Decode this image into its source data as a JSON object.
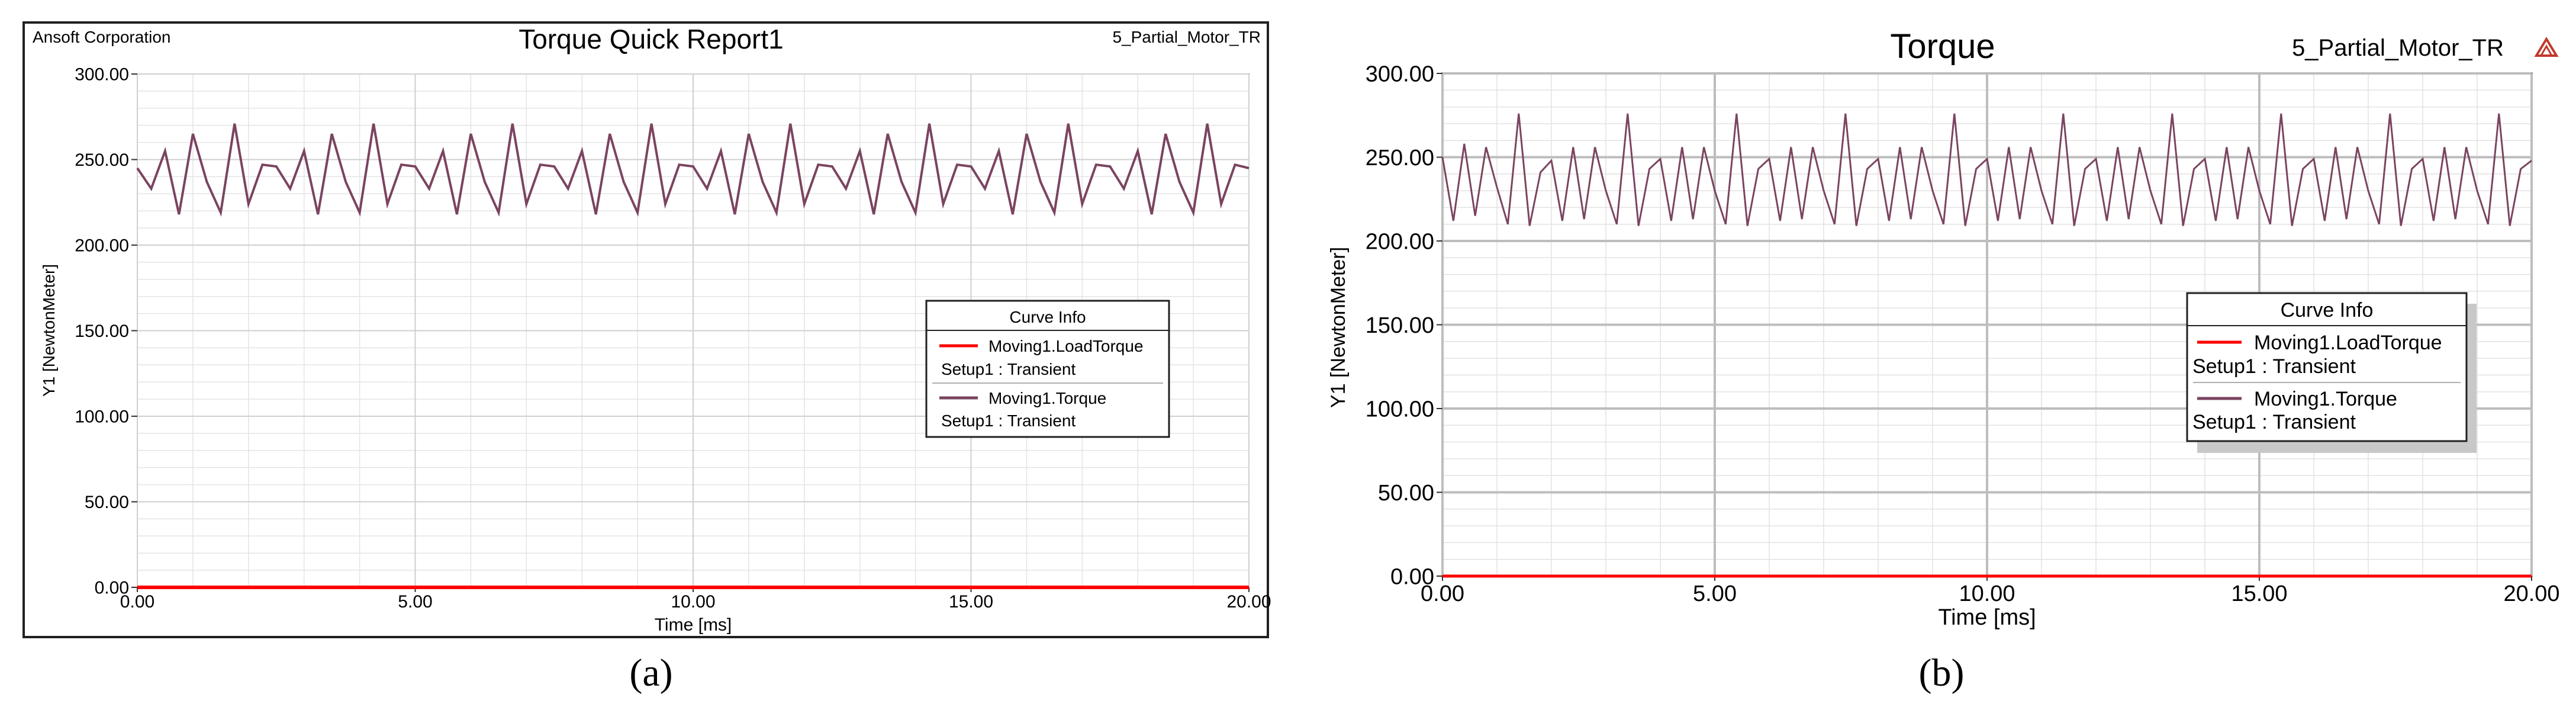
{
  "figure": {
    "panel_a_caption": "(a)",
    "panel_b_caption": "(b)"
  },
  "chart_data": [
    {
      "type": "line",
      "panel": "(a)",
      "title": "Torque Quick Report1",
      "company": "Ansoft Corporation",
      "project": "5_Partial_Motor_TR",
      "xlabel": "Time [ms]",
      "ylabel": "Y1 [NewtonMeter]",
      "xlim": [
        0,
        20
      ],
      "ylim": [
        0,
        300
      ],
      "x_ticks": [
        "0.00",
        "5.00",
        "10.00",
        "15.00",
        "20.00"
      ],
      "y_ticks": [
        "0.00",
        "50.00",
        "100.00",
        "150.00",
        "200.00",
        "250.00",
        "300.00"
      ],
      "grid": true,
      "legend_position": "center-right",
      "legend_title": "Curve Info",
      "series": [
        {
          "name": "Moving1.LoadTorque",
          "subtitle": "Setup1 : Transient",
          "color": "#ff0000",
          "x": [
            0,
            20
          ],
          "y": [
            0,
            0
          ]
        },
        {
          "name": "Moving1.Torque",
          "subtitle": "Setup1 : Transient",
          "color": "#7b4460",
          "x": [
            0.0,
            0.25,
            0.5,
            0.75,
            1.0,
            1.25,
            1.5,
            1.75,
            2.0,
            2.25,
            2.5,
            2.75,
            3.0,
            3.25,
            3.5,
            3.75,
            4.0,
            4.25,
            4.5,
            4.75,
            5.0,
            5.25,
            5.5,
            5.75,
            6.0,
            6.25,
            6.5,
            6.75,
            7.0,
            7.25,
            7.5,
            7.75,
            8.0,
            8.25,
            8.5,
            8.75,
            9.0,
            9.25,
            9.5,
            9.75,
            10.0,
            10.25,
            10.5,
            10.75,
            11.0,
            11.25,
            11.5,
            11.75,
            12.0,
            12.25,
            12.5,
            12.75,
            13.0,
            13.25,
            13.5,
            13.75,
            14.0,
            14.25,
            14.5,
            14.75,
            15.0,
            15.25,
            15.5,
            15.75,
            16.0,
            16.25,
            16.5,
            16.75,
            17.0,
            17.25,
            17.5,
            17.75,
            18.0,
            18.25,
            18.5,
            18.75,
            19.0,
            19.25,
            19.5,
            19.75,
            20.0
          ],
          "y": [
            245,
            233,
            255,
            218,
            265,
            237,
            219,
            271,
            224,
            247,
            246,
            233,
            255,
            218,
            265,
            237,
            219,
            271,
            224,
            247,
            246,
            233,
            255,
            218,
            265,
            237,
            219,
            271,
            224,
            247,
            246,
            233,
            255,
            218,
            265,
            237,
            219,
            271,
            224,
            247,
            246,
            233,
            255,
            218,
            265,
            237,
            219,
            271,
            224,
            247,
            246,
            233,
            255,
            218,
            265,
            237,
            219,
            271,
            224,
            247,
            246,
            233,
            255,
            218,
            265,
            237,
            219,
            271,
            224,
            247,
            246,
            233,
            255,
            218,
            265,
            237,
            219,
            271,
            224,
            247,
            245
          ]
        }
      ]
    },
    {
      "type": "line",
      "panel": "(b)",
      "title": "Torque",
      "project": "5_Partial_Motor_TR",
      "xlabel": "Time [ms]",
      "ylabel": "Y1 [NewtonMeter]",
      "xlim": [
        0,
        20
      ],
      "ylim": [
        0,
        300
      ],
      "x_ticks": [
        "0.00",
        "5.00",
        "10.00",
        "15.00",
        "20.00"
      ],
      "y_ticks": [
        "0.00",
        "50.00",
        "100.00",
        "150.00",
        "200.00",
        "250.00",
        "300.00"
      ],
      "grid": true,
      "legend_position": "center-right",
      "legend_title": "Curve Info",
      "series": [
        {
          "name": "Moving1.LoadTorque",
          "subtitle": "Setup1 : Transient",
          "color": "#ff0000",
          "x": [
            0,
            20
          ],
          "y": [
            0,
            0
          ]
        },
        {
          "name": "Moving1.Torque",
          "subtitle": "Setup1 : Transient",
          "color": "#7b4460",
          "x": [
            0.0,
            0.2,
            0.4,
            0.6,
            0.8,
            1.0,
            1.2,
            1.4,
            1.6,
            1.8,
            2.0,
            2.2,
            2.4,
            2.6,
            2.8,
            3.0,
            3.2,
            3.4,
            3.6,
            3.8,
            4.0,
            4.2,
            4.4,
            4.6,
            4.8,
            5.0,
            5.2,
            5.4,
            5.6,
            5.8,
            6.0,
            6.2,
            6.4,
            6.6,
            6.8,
            7.0,
            7.2,
            7.4,
            7.6,
            7.8,
            8.0,
            8.2,
            8.4,
            8.6,
            8.8,
            9.0,
            9.2,
            9.4,
            9.6,
            9.8,
            10.0,
            10.2,
            10.4,
            10.6,
            10.8,
            11.0,
            11.2,
            11.4,
            11.6,
            11.8,
            12.0,
            12.2,
            12.4,
            12.6,
            12.8,
            13.0,
            13.2,
            13.4,
            13.6,
            13.8,
            14.0,
            14.2,
            14.4,
            14.6,
            14.8,
            15.0,
            15.2,
            15.4,
            15.6,
            15.8,
            16.0,
            16.2,
            16.4,
            16.6,
            16.8,
            17.0,
            17.2,
            17.4,
            17.6,
            17.8,
            18.0,
            18.2,
            18.4,
            18.6,
            18.8,
            19.0,
            19.2,
            19.4,
            19.6,
            19.8,
            20.0
          ],
          "y": [
            250,
            212,
            258,
            215,
            256,
            232,
            210,
            276,
            209,
            241,
            248,
            212,
            256,
            213,
            256,
            230,
            210,
            276,
            209,
            243,
            249,
            212,
            256,
            213,
            256,
            230,
            210,
            276,
            209,
            243,
            249,
            212,
            256,
            213,
            256,
            230,
            210,
            276,
            209,
            243,
            249,
            212,
            256,
            213,
            256,
            230,
            210,
            276,
            209,
            243,
            249,
            212,
            256,
            213,
            256,
            230,
            210,
            276,
            209,
            243,
            249,
            212,
            256,
            213,
            256,
            230,
            210,
            276,
            209,
            243,
            249,
            212,
            256,
            213,
            256,
            230,
            210,
            276,
            209,
            243,
            249,
            212,
            256,
            213,
            256,
            230,
            210,
            276,
            209,
            243,
            249,
            212,
            256,
            213,
            256,
            230,
            210,
            276,
            209,
            243,
            248
          ]
        }
      ]
    }
  ]
}
